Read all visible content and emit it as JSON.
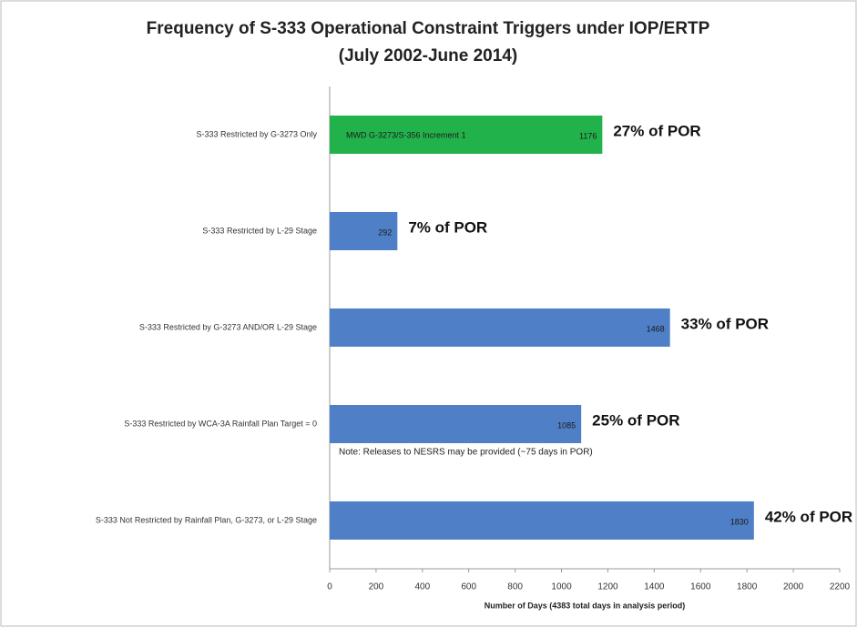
{
  "chart_data": {
    "type": "barh",
    "title": "Frequency of S-333 Operational Constraint Triggers under IOP/ERTP",
    "subtitle": "(July 2002-June 2014)",
    "categories": [
      "S-333 Restricted by G-3273 Only",
      "S-333 Restricted by L-29 Stage",
      "S-333 Restricted by G-3273 AND/OR L-29 Stage",
      "S-333 Restricted by WCA-3A Rainfall Plan Target = 0",
      "S-333 Not Restricted by Rainfall Plan, G-3273, or L-29 Stage"
    ],
    "values": [
      1176,
      292,
      1468,
      1085,
      1830
    ],
    "colors": [
      "#22b24c",
      "#4f7fc6",
      "#4f7fc6",
      "#4f7fc6",
      "#4f7fc6"
    ],
    "annotations": [
      "27% of POR",
      "7% of POR",
      "33% of POR",
      "25% of POR",
      "42% of POR"
    ],
    "bar_text": "MWD G-3273/S-356 Increment 1",
    "note": "Note:  Releases to NESRS may be provided (~75 days in POR)",
    "xlabel": "Number of Days (4383 total days in analysis period)",
    "xlim": [
      0,
      2200
    ],
    "xticks": [
      0,
      200,
      400,
      600,
      800,
      1000,
      1200,
      1400,
      1600,
      1800,
      2000,
      2200
    ],
    "grid": false
  }
}
